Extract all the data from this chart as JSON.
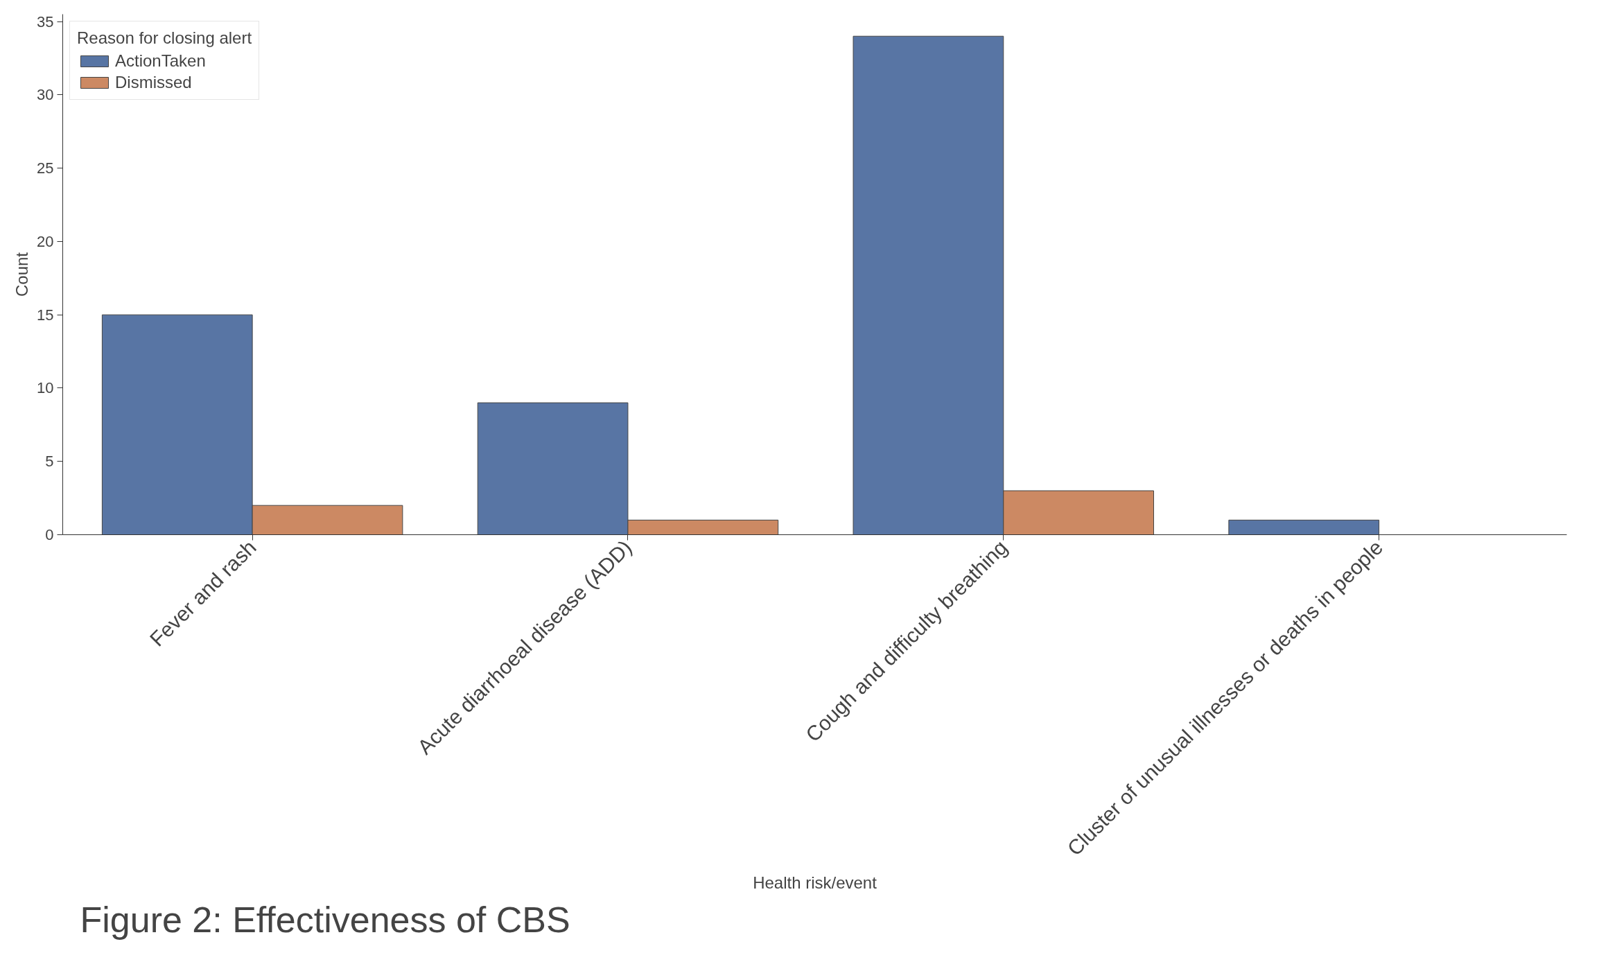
{
  "chart_data": {
    "type": "bar",
    "categories": [
      "Fever and rash",
      "Acute diarrhoeal disease (ADD)",
      "Cough and difficulty breathing",
      "Cluster of unusual illnesses or deaths in people"
    ],
    "series": [
      {
        "name": "ActionTaken",
        "color": "#5875a4",
        "values": [
          15,
          9,
          34,
          1
        ]
      },
      {
        "name": "Dismissed",
        "color": "#cc8963",
        "values": [
          2,
          1,
          3,
          null
        ]
      }
    ],
    "xlabel": "Health risk/event",
    "ylabel": "Count",
    "legend_title": "Reason for closing alert",
    "legend": "top left",
    "grid": false,
    "ylim": [
      0,
      35.5
    ],
    "yticks": [
      0,
      5,
      10,
      15,
      20,
      25,
      30,
      35
    ],
    "annotations": [
      "Figure 2: Effectiveness of CBS"
    ]
  }
}
